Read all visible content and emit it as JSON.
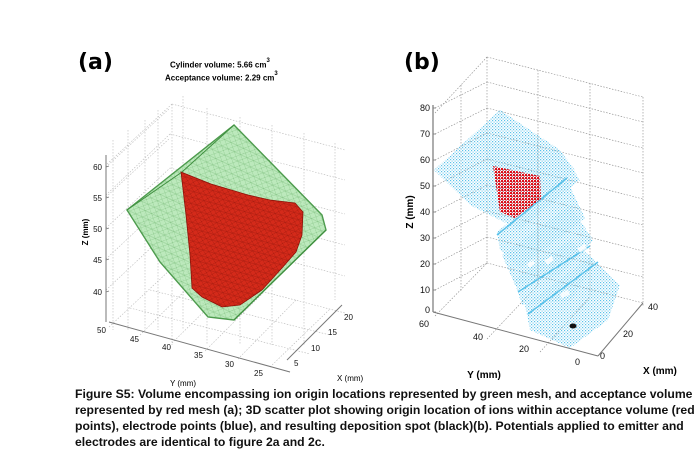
{
  "figure": {
    "panel_a": {
      "label": "(a)",
      "annotation": {
        "cylinder_volume_text": "Cylinder volume: 5.66 cm",
        "acceptance_volume_text": "Acceptance volume: 2.29 cm",
        "unit_exponent": "3"
      },
      "z_axis": {
        "label": "Z (mm)",
        "ticks": [
          "60",
          "55",
          "50",
          "45",
          "40"
        ]
      },
      "y_axis": {
        "label": "Y (mm)",
        "ticks": [
          "50",
          "45",
          "40",
          "35",
          "30",
          "25"
        ]
      },
      "x_axis": {
        "label": "X (mm)",
        "ticks": [
          "20",
          "15",
          "10",
          "5"
        ]
      },
      "colors": {
        "outer_mesh": "#8fd88f",
        "outer_edge": "#3f8f3f",
        "inner_mesh": "#d42a1a",
        "grid": "#bbbbbb"
      }
    },
    "panel_b": {
      "label": "(b)",
      "z_axis": {
        "label": "Z (mm)",
        "ticks": [
          "80",
          "70",
          "60",
          "50",
          "40",
          "30",
          "20",
          "10",
          "0"
        ]
      },
      "y_axis": {
        "label": "Y (mm)",
        "ticks": [
          "60",
          "40",
          "20",
          "0"
        ]
      },
      "x_axis": {
        "label": "X (mm)",
        "ticks": [
          "0",
          "20",
          "40"
        ]
      },
      "colors": {
        "electrode_points": "#5bc2ea",
        "ion_points": "#e0101a",
        "deposition_spot": "#111111",
        "grid": "#888888"
      }
    },
    "caption": "Figure S5: Volume encompassing ion origin locations represented by green mesh, and acceptance volume represented by red mesh (a); 3D scatter plot showing origin location of ions within acceptance volume (red points), electrode points (blue), and resulting deposition spot (black)(b). Potentials applied to emitter and electrodes are identical to figure 2a and 2c."
  }
}
